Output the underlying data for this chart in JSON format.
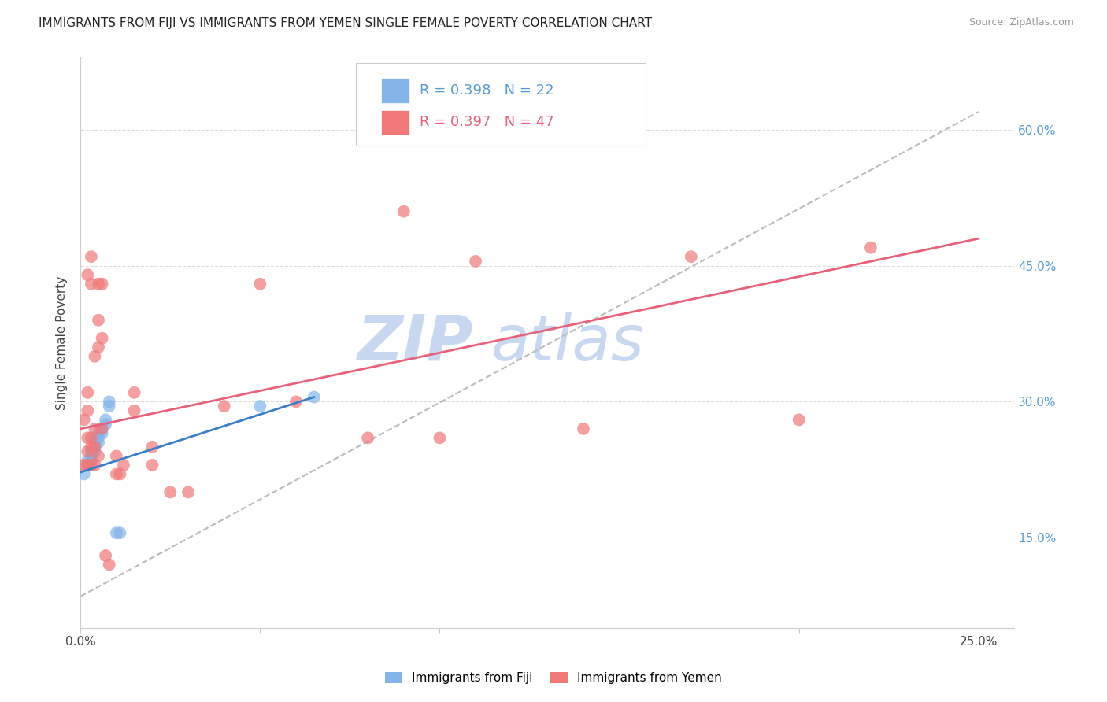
{
  "title": "IMMIGRANTS FROM FIJI VS IMMIGRANTS FROM YEMEN SINGLE FEMALE POVERTY CORRELATION CHART",
  "source": "Source: ZipAtlas.com",
  "ylabel_left": "Single Female Poverty",
  "ylabel_right_ticks": [
    0.15,
    0.3,
    0.45,
    0.6
  ],
  "ylabel_right_labels": [
    "15.0%",
    "30.0%",
    "45.0%",
    "60.0%"
  ],
  "xlabel_bottom_ticks": [
    0.0,
    0.05,
    0.1,
    0.15,
    0.2,
    0.25
  ],
  "xlabel_bottom_labels": [
    "0.0%",
    "",
    "",
    "",
    "",
    "25.0%"
  ],
  "xlim": [
    0.0,
    0.26
  ],
  "ylim": [
    0.05,
    0.68
  ],
  "fiji_R": 0.398,
  "fiji_N": 22,
  "yemen_R": 0.397,
  "yemen_N": 47,
  "fiji_color": "#82B4EA",
  "yemen_color": "#F07878",
  "fiji_line_color": "#3A7DC9",
  "yemen_line_color": "#E8607A",
  "dashed_line_color": "#BBBBBB",
  "fiji_scatter": [
    [
      0.001,
      0.22
    ],
    [
      0.002,
      0.23
    ],
    [
      0.002,
      0.235
    ],
    [
      0.003,
      0.235
    ],
    [
      0.003,
      0.24
    ],
    [
      0.003,
      0.245
    ],
    [
      0.004,
      0.245
    ],
    [
      0.004,
      0.25
    ],
    [
      0.004,
      0.255
    ],
    [
      0.005,
      0.255
    ],
    [
      0.005,
      0.26
    ],
    [
      0.005,
      0.265
    ],
    [
      0.006,
      0.265
    ],
    [
      0.006,
      0.27
    ],
    [
      0.007,
      0.275
    ],
    [
      0.007,
      0.28
    ],
    [
      0.008,
      0.295
    ],
    [
      0.008,
      0.3
    ],
    [
      0.01,
      0.155
    ],
    [
      0.011,
      0.155
    ],
    [
      0.05,
      0.295
    ],
    [
      0.065,
      0.305
    ]
  ],
  "yemen_scatter": [
    [
      0.001,
      0.23
    ],
    [
      0.001,
      0.28
    ],
    [
      0.002,
      0.23
    ],
    [
      0.002,
      0.245
    ],
    [
      0.002,
      0.26
    ],
    [
      0.002,
      0.29
    ],
    [
      0.002,
      0.31
    ],
    [
      0.002,
      0.44
    ],
    [
      0.003,
      0.23
    ],
    [
      0.003,
      0.25
    ],
    [
      0.003,
      0.26
    ],
    [
      0.003,
      0.43
    ],
    [
      0.003,
      0.46
    ],
    [
      0.004,
      0.23
    ],
    [
      0.004,
      0.25
    ],
    [
      0.004,
      0.27
    ],
    [
      0.004,
      0.35
    ],
    [
      0.005,
      0.24
    ],
    [
      0.005,
      0.36
    ],
    [
      0.005,
      0.39
    ],
    [
      0.005,
      0.43
    ],
    [
      0.006,
      0.27
    ],
    [
      0.006,
      0.37
    ],
    [
      0.006,
      0.43
    ],
    [
      0.007,
      0.13
    ],
    [
      0.008,
      0.12
    ],
    [
      0.01,
      0.22
    ],
    [
      0.01,
      0.24
    ],
    [
      0.011,
      0.22
    ],
    [
      0.012,
      0.23
    ],
    [
      0.015,
      0.29
    ],
    [
      0.015,
      0.31
    ],
    [
      0.02,
      0.23
    ],
    [
      0.02,
      0.25
    ],
    [
      0.025,
      0.2
    ],
    [
      0.03,
      0.2
    ],
    [
      0.04,
      0.295
    ],
    [
      0.05,
      0.43
    ],
    [
      0.06,
      0.3
    ],
    [
      0.08,
      0.26
    ],
    [
      0.09,
      0.51
    ],
    [
      0.1,
      0.26
    ],
    [
      0.11,
      0.455
    ],
    [
      0.14,
      0.27
    ],
    [
      0.17,
      0.46
    ],
    [
      0.2,
      0.28
    ],
    [
      0.22,
      0.47
    ]
  ],
  "fiji_line": [
    [
      0.0,
      0.222
    ],
    [
      0.065,
      0.305
    ]
  ],
  "yemen_line": [
    [
      0.0,
      0.27
    ],
    [
      0.25,
      0.48
    ]
  ],
  "dashed_line": [
    [
      0.0,
      0.085
    ],
    [
      0.25,
      0.62
    ]
  ],
  "watermark_zip": "ZIP",
  "watermark_atlas": "atlas",
  "watermark_color": "#C8D8F0",
  "watermark_fontsize": 58,
  "legend_fiji_label": "Immigrants from Fiji",
  "legend_yemen_label": "Immigrants from Yemen"
}
